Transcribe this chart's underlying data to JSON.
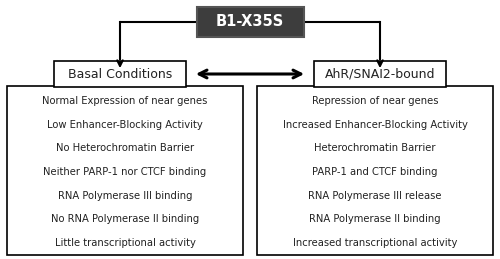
{
  "title": "B1-X35S",
  "left_box_label": "Basal Conditions",
  "right_box_label": "AhR/SNAI2-bound",
  "left_items": [
    "Normal Expression of near genes",
    "Low Enhancer-Blocking Activity",
    "No Heterochromatin Barrier",
    "Neither PARP-1 nor CTCF binding",
    "RNA Polymerase III binding",
    "No RNA Polymerase II binding",
    "Little transcriptional activity"
  ],
  "right_items": [
    "Repression of near genes",
    "Increased Enhancer-Blocking Activity",
    "Heterochromatin Barrier",
    "PARP-1 and CTCF binding",
    "RNA Polymerase III release",
    "RNA Polymerase II binding",
    "Increased transcriptional activity"
  ],
  "title_bg": "#3d3d3d",
  "title_fg": "#ffffff",
  "box_border": "#555555",
  "text_color": "#222222",
  "bg_color": "#ffffff",
  "item_fontsize": 7.2,
  "label_fontsize": 9.0,
  "title_fontsize": 10.5
}
